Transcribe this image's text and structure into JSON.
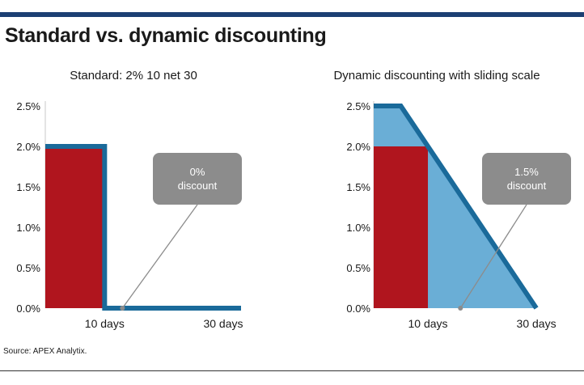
{
  "page": {
    "title": "Standard vs. dynamic discounting",
    "source": "Source: APEX Analytix."
  },
  "colors": {
    "rule": "#1c3f73",
    "bar_red": "#b0151e",
    "blue_line": "#1a6a9a",
    "blue_fill": "#6aaed6",
    "callout": "#8c8c8c",
    "axis": "#c9c9c9"
  },
  "chart_data": [
    {
      "type": "area",
      "title": "Standard: 2% 10 net 30",
      "y_ticks": [
        "2.5%",
        "2.0%",
        "1.5%",
        "1.0%",
        "0.5%",
        "0.0%"
      ],
      "x_tick_labels": [
        {
          "x": 10,
          "label": "10 days"
        },
        {
          "x": 30,
          "label": "30 days"
        }
      ],
      "xlim": [
        0,
        33
      ],
      "ylim": [
        0,
        2.5
      ],
      "bar": {
        "x_from": 0,
        "x_to": 10,
        "value": 2.0
      },
      "series": [
        {
          "points": [
            [
              0,
              2.0
            ],
            [
              10,
              2.0
            ],
            [
              10,
              0.0
            ],
            [
              33,
              0.0
            ]
          ]
        }
      ],
      "callout": {
        "line1": "0%",
        "line2": "discount",
        "anchor": [
          13,
          0.0
        ]
      }
    },
    {
      "type": "area",
      "title": "Dynamic discounting with sliding scale",
      "y_ticks": [
        "2.5%",
        "2.0%",
        "1.5%",
        "1.0%",
        "0.5%",
        "0.0%"
      ],
      "x_tick_labels": [
        {
          "x": 10,
          "label": "10 days"
        },
        {
          "x": 30,
          "label": "30 days"
        }
      ],
      "xlim": [
        0,
        37
      ],
      "ylim": [
        0,
        2.5
      ],
      "bar": {
        "x_from": 0,
        "x_to": 10,
        "value": 2.0
      },
      "series": [
        {
          "points": [
            [
              0,
              2.5
            ],
            [
              5,
              2.5
            ],
            [
              30,
              0.0
            ]
          ]
        }
      ],
      "callout": {
        "line1": "1.5%",
        "line2": "discount",
        "anchor": [
          16,
          0.0
        ]
      }
    }
  ]
}
